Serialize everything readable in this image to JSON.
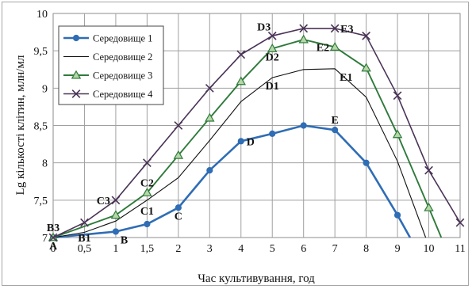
{
  "chart_data": {
    "type": "line",
    "xlabel": "Час культивування, год",
    "ylabel": "Lg кількості клітин, млн/мл",
    "xlim": [
      0,
      11
    ],
    "ylim": [
      7,
      10
    ],
    "grid": true,
    "legend_position": "top-left",
    "x_ticks": [
      "0",
      "0,5",
      "1",
      "1,5",
      "2",
      "3",
      "4",
      "5",
      "6",
      "7",
      "8",
      "9",
      "10",
      "11"
    ],
    "y_ticks": [
      "7",
      "7,5",
      "8",
      "8,5",
      "9",
      "9,5",
      "10"
    ],
    "x": [
      "0",
      "0,5",
      "1",
      "1,5",
      "2",
      "3",
      "4",
      "5",
      "6",
      "7",
      "8",
      "9",
      "10",
      "11"
    ],
    "series": [
      {
        "name": "Середовище 1",
        "color": "#2f6db5",
        "marker": "circle",
        "points": [
          {
            "x": "0",
            "y": 7.0
          },
          {
            "x": "1",
            "y": 7.08
          },
          {
            "x": "1,5",
            "y": 7.18
          },
          {
            "x": "2",
            "y": 7.4
          },
          {
            "x": "3",
            "y": 7.9
          },
          {
            "x": "4",
            "y": 8.29
          },
          {
            "x": "5",
            "y": 8.39
          },
          {
            "x": "6",
            "y": 8.5
          },
          {
            "x": "7",
            "y": 8.44
          },
          {
            "x": "8",
            "y": 8.0
          },
          {
            "x": "9",
            "y": 7.3
          },
          {
            "x": "9,4",
            "y": 7.0,
            "marker": false
          }
        ]
      },
      {
        "name": "Середовище 2",
        "color": "#111111",
        "marker": "none",
        "points": [
          {
            "x": "0",
            "y": 7.0
          },
          {
            "x": "0,5",
            "y": 7.07
          },
          {
            "x": "1",
            "y": 7.22
          },
          {
            "x": "1,5",
            "y": 7.5
          },
          {
            "x": "2",
            "y": 7.8
          },
          {
            "x": "3",
            "y": 8.3
          },
          {
            "x": "4",
            "y": 8.82
          },
          {
            "x": "5",
            "y": 9.14
          },
          {
            "x": "6",
            "y": 9.25
          },
          {
            "x": "7",
            "y": 9.26
          },
          {
            "x": "8",
            "y": 8.88
          },
          {
            "x": "9",
            "y": 8.02
          },
          {
            "x": "9,9",
            "y": 7.0
          }
        ]
      },
      {
        "name": "Середовище 3",
        "color": "#2e7a3a",
        "marker": "triangle",
        "points": [
          {
            "x": "0",
            "y": 7.0
          },
          {
            "x": "1",
            "y": 7.3
          },
          {
            "x": "1,5",
            "y": 7.6
          },
          {
            "x": "2",
            "y": 8.1
          },
          {
            "x": "3",
            "y": 8.6
          },
          {
            "x": "4",
            "y": 9.09
          },
          {
            "x": "5",
            "y": 9.53
          },
          {
            "x": "6",
            "y": 9.65
          },
          {
            "x": "7",
            "y": 9.55
          },
          {
            "x": "8",
            "y": 9.27
          },
          {
            "x": "9",
            "y": 8.38
          },
          {
            "x": "10",
            "y": 7.4
          },
          {
            "x": "10,4",
            "y": 7.0,
            "marker": false
          }
        ]
      },
      {
        "name": "Середовище 4",
        "color": "#4a3357",
        "marker": "x",
        "points": [
          {
            "x": "0",
            "y": 7.0
          },
          {
            "x": "0,5",
            "y": 7.2
          },
          {
            "x": "1",
            "y": 7.5
          },
          {
            "x": "1,5",
            "y": 8.0
          },
          {
            "x": "2",
            "y": 8.5
          },
          {
            "x": "3",
            "y": 9.0
          },
          {
            "x": "4",
            "y": 9.45
          },
          {
            "x": "5",
            "y": 9.7
          },
          {
            "x": "6",
            "y": 9.8
          },
          {
            "x": "7",
            "y": 9.8
          },
          {
            "x": "8",
            "y": 9.7
          },
          {
            "x": "9",
            "y": 8.9
          },
          {
            "x": "10",
            "y": 7.9
          },
          {
            "x": "11",
            "y": 7.2
          }
        ]
      }
    ],
    "annotations": [
      {
        "text": "A",
        "x": "0",
        "y": 7.0,
        "pos": "below"
      },
      {
        "text": "B3",
        "x": "0",
        "y": 7.0,
        "pos": "above"
      },
      {
        "text": "B1",
        "x": "0,5",
        "y": 7.0,
        "pos": "center"
      },
      {
        "text": "B",
        "x": "1",
        "y": 7.08,
        "pos": "below-right"
      },
      {
        "text": "C3",
        "x": "1",
        "y": 7.5,
        "pos": "left"
      },
      {
        "text": "C2",
        "x": "1,5",
        "y": 7.6,
        "pos": "above"
      },
      {
        "text": "C1",
        "x": "1,5",
        "y": 7.18,
        "pos": "above-far"
      },
      {
        "text": "C",
        "x": "2",
        "y": 7.4,
        "pos": "below"
      },
      {
        "text": "D",
        "x": "4",
        "y": 8.29,
        "pos": "right"
      },
      {
        "text": "D1",
        "x": "5",
        "y": 9.14,
        "pos": "below"
      },
      {
        "text": "D2",
        "x": "5",
        "y": 9.53,
        "pos": "below"
      },
      {
        "text": "D3",
        "x": "5",
        "y": 9.7,
        "pos": "above-left"
      },
      {
        "text": "E",
        "x": "7",
        "y": 8.44,
        "pos": "above"
      },
      {
        "text": "E1",
        "x": "7",
        "y": 9.26,
        "pos": "below-right"
      },
      {
        "text": "E2",
        "x": "7",
        "y": 9.55,
        "pos": "left"
      },
      {
        "text": "E3",
        "x": "7",
        "y": 9.8,
        "pos": "right"
      }
    ]
  }
}
